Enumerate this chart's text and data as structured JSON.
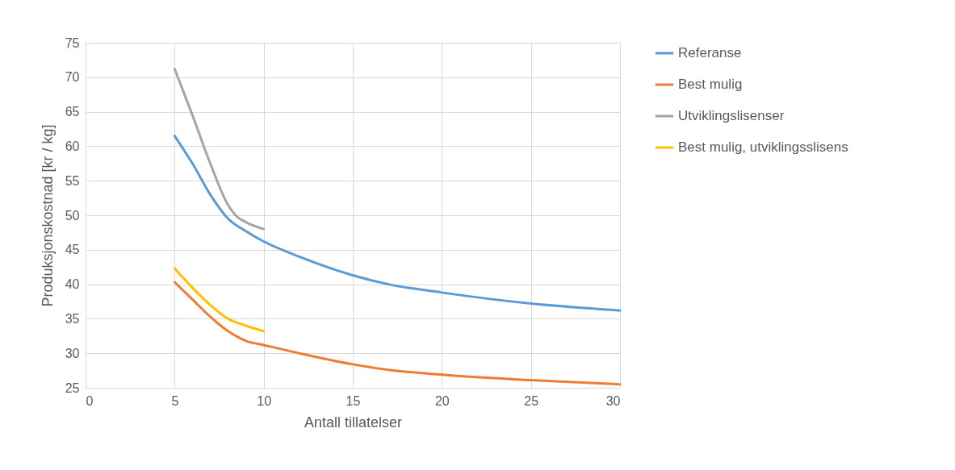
{
  "chart_data": {
    "type": "line",
    "xlabel": "Antall tillatelser",
    "ylabel": "Produksjonskostnad [kr / kg]",
    "xlim": [
      0,
      30
    ],
    "xticks": [
      0,
      5,
      10,
      15,
      20,
      25,
      30
    ],
    "ylim": [
      25,
      75
    ],
    "yticks": [
      25,
      30,
      35,
      40,
      45,
      50,
      55,
      60,
      65,
      70,
      75
    ],
    "grid": true,
    "legend": "right",
    "line_style": "solid",
    "marker": "none",
    "series": [
      {
        "name": "Referanse",
        "color": "#5b9bd5",
        "x": [
          5,
          6,
          7,
          8,
          9,
          10,
          12,
          15,
          17,
          20,
          25,
          30
        ],
        "values": [
          61.5,
          57.5,
          53,
          49.5,
          47.7,
          46.2,
          44,
          41.3,
          40,
          38.8,
          37.2,
          36.2
        ]
      },
      {
        "name": "Best mulig",
        "color": "#ed7d31",
        "x": [
          5,
          6,
          7,
          8,
          9,
          10,
          12,
          15,
          17,
          20,
          25,
          30
        ],
        "values": [
          40.3,
          37.8,
          35.3,
          33.2,
          31.8,
          31.2,
          30,
          28.4,
          27.6,
          26.9,
          26.1,
          25.5
        ]
      },
      {
        "name": "Utviklingslisenser",
        "color": "#a5a5a5",
        "x": [
          5,
          6,
          7,
          8,
          8.5,
          9,
          10
        ],
        "values": [
          71.2,
          64.5,
          57.5,
          51.5,
          49.8,
          49,
          48
        ]
      },
      {
        "name": "Best mulig, utviklingsslisens",
        "color": "#ffc000",
        "x": [
          5,
          6,
          7,
          8,
          9,
          10
        ],
        "values": [
          42.3,
          39.5,
          37,
          35,
          34,
          33.2
        ]
      }
    ]
  }
}
